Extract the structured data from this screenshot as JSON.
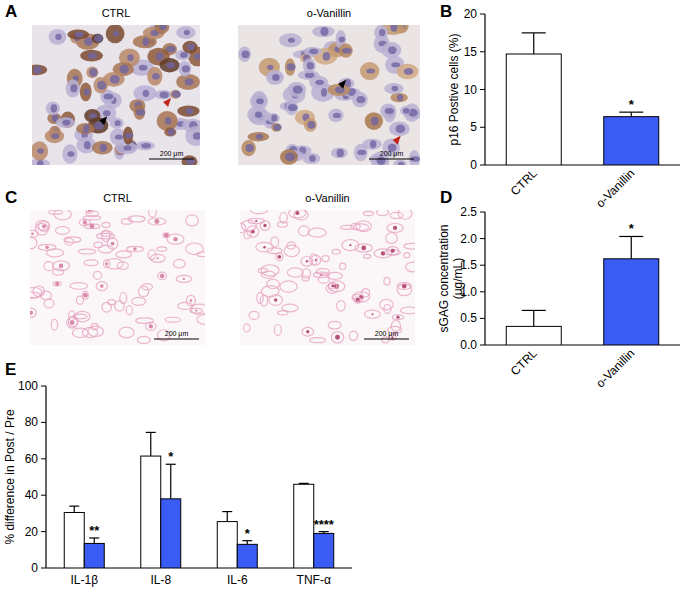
{
  "panel_labels": [
    "A",
    "B",
    "C",
    "D",
    "E"
  ],
  "images": [
    {
      "titles": [
        "CTRL",
        "o-Vanillin"
      ],
      "scale_bar": "200 μm"
    },
    {
      "titles": [
        "CTRL",
        "o-Vanillin"
      ],
      "scale_bar": "200 μm"
    }
  ],
  "chart_data": [
    {
      "type": "bar",
      "y_label": "p16 Postive cells (%)",
      "categories": [
        "CTRL",
        "o-Vanillin"
      ],
      "values": [
        14.7,
        6.4
      ],
      "errors": [
        2.8,
        0.6
      ],
      "colors": [
        "#ffffff",
        "#3b5bf5"
      ],
      "significance": [
        null,
        "*"
      ],
      "ylim": [
        0,
        20
      ],
      "yticks": [
        0,
        5,
        10,
        15,
        20
      ]
    },
    {
      "type": "bar",
      "y_label": "sGAG concentration\n(μg/mL)",
      "categories": [
        "CTRL",
        "o-Vanillin"
      ],
      "values": [
        0.35,
        1.62
      ],
      "errors": [
        0.3,
        0.42
      ],
      "colors": [
        "#ffffff",
        "#3b5bf5"
      ],
      "significance": [
        null,
        "*"
      ],
      "ylim": [
        0,
        2.5
      ],
      "yticks": [
        {
          "value": 0,
          "label": "0.0"
        },
        {
          "value": 0.5,
          "label": "0.5"
        },
        {
          "value": 1,
          "label": "1.0"
        },
        {
          "value": 1.5,
          "label": "1.5"
        },
        {
          "value": 2,
          "label": "2.0"
        },
        {
          "value": 2.5,
          "label": "2.5"
        }
      ]
    },
    {
      "type": "bar",
      "y_label": "% difference in Post / Pre",
      "categories": [
        "IL-1β",
        "IL-8",
        "IL-6",
        "TNF-α"
      ],
      "series": [
        {
          "color": "#ffffff",
          "values": [
            30.5,
            61.5,
            25.5,
            46
          ],
          "errors": [
            3.5,
            13,
            5.5,
            0.5
          ]
        },
        {
          "color": "#3b5bf5",
          "values": [
            13.5,
            38,
            13,
            19
          ],
          "errors": [
            3,
            19,
            2,
            1
          ],
          "significance": [
            "**",
            "*",
            "*",
            "****"
          ]
        }
      ],
      "ylim": [
        0,
        100
      ],
      "yticks": [
        0,
        20,
        40,
        60,
        80,
        100
      ]
    }
  ]
}
